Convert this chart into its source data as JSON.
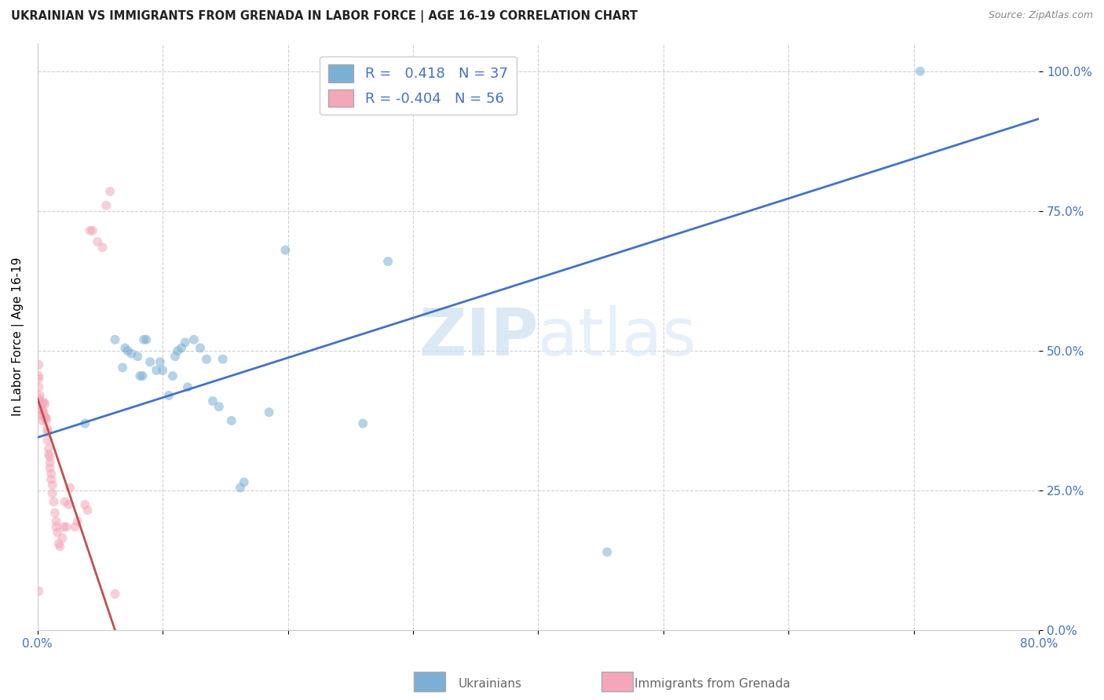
{
  "title": "UKRAINIAN VS IMMIGRANTS FROM GRENADA IN LABOR FORCE | AGE 16-19 CORRELATION CHART",
  "source": "Source: ZipAtlas.com",
  "ylabel": "In Labor Force | Age 16-19",
  "watermark_zip": "ZIP",
  "watermark_atlas": "atlas",
  "xlim": [
    0.0,
    0.8
  ],
  "ylim": [
    0.0,
    1.05
  ],
  "blue_R": 0.418,
  "blue_N": 37,
  "pink_R": -0.404,
  "pink_N": 56,
  "blue_scatter_x": [
    0.038,
    0.062,
    0.068,
    0.07,
    0.072,
    0.075,
    0.08,
    0.082,
    0.084,
    0.085,
    0.087,
    0.09,
    0.095,
    0.098,
    0.1,
    0.105,
    0.108,
    0.11,
    0.112,
    0.115,
    0.118,
    0.12,
    0.125,
    0.13,
    0.135,
    0.14,
    0.145,
    0.148,
    0.155,
    0.162,
    0.165,
    0.185,
    0.198,
    0.26,
    0.28,
    0.455,
    0.705
  ],
  "blue_scatter_y": [
    0.37,
    0.52,
    0.47,
    0.505,
    0.5,
    0.495,
    0.49,
    0.455,
    0.455,
    0.52,
    0.52,
    0.48,
    0.465,
    0.48,
    0.465,
    0.42,
    0.455,
    0.49,
    0.5,
    0.505,
    0.515,
    0.435,
    0.52,
    0.505,
    0.485,
    0.41,
    0.4,
    0.485,
    0.375,
    0.255,
    0.265,
    0.39,
    0.68,
    0.37,
    0.66,
    0.14,
    1.0
  ],
  "pink_scatter_x": [
    0.001,
    0.001,
    0.001,
    0.001,
    0.001,
    0.002,
    0.002,
    0.003,
    0.003,
    0.004,
    0.004,
    0.004,
    0.005,
    0.005,
    0.005,
    0.006,
    0.006,
    0.007,
    0.007,
    0.008,
    0.008,
    0.008,
    0.009,
    0.009,
    0.01,
    0.01,
    0.01,
    0.011,
    0.011,
    0.012,
    0.012,
    0.013,
    0.014,
    0.015,
    0.015,
    0.016,
    0.017,
    0.018,
    0.02,
    0.021,
    0.022,
    0.023,
    0.025,
    0.026,
    0.03,
    0.032,
    0.038,
    0.04,
    0.042,
    0.044,
    0.048,
    0.052,
    0.055,
    0.058,
    0.062,
    0.001
  ],
  "pink_scatter_y": [
    0.415,
    0.435,
    0.455,
    0.475,
    0.45,
    0.42,
    0.41,
    0.395,
    0.385,
    0.375,
    0.405,
    0.395,
    0.408,
    0.39,
    0.385,
    0.405,
    0.38,
    0.38,
    0.375,
    0.36,
    0.355,
    0.34,
    0.325,
    0.315,
    0.31,
    0.3,
    0.29,
    0.28,
    0.27,
    0.26,
    0.245,
    0.23,
    0.21,
    0.195,
    0.185,
    0.175,
    0.155,
    0.15,
    0.165,
    0.185,
    0.23,
    0.185,
    0.225,
    0.255,
    0.185,
    0.195,
    0.225,
    0.215,
    0.715,
    0.715,
    0.695,
    0.685,
    0.76,
    0.785,
    0.065,
    0.07
  ],
  "blue_line_x": [
    0.0,
    0.8
  ],
  "blue_line_y": [
    0.345,
    0.915
  ],
  "pink_line_x": [
    0.0,
    0.062
  ],
  "pink_line_y": [
    0.415,
    0.0
  ],
  "background_color": "#ffffff",
  "grid_color": "#d0d0d0",
  "blue_color": "#7bafd4",
  "blue_line_color": "#4472c4",
  "pink_color": "#f4a7b9",
  "pink_line_color": "#c0504d",
  "scatter_size": 75,
  "scatter_alpha": 0.55,
  "legend_fontsize": 13,
  "title_fontsize": 10.5,
  "tick_fontsize": 11,
  "ylabel_fontsize": 11
}
